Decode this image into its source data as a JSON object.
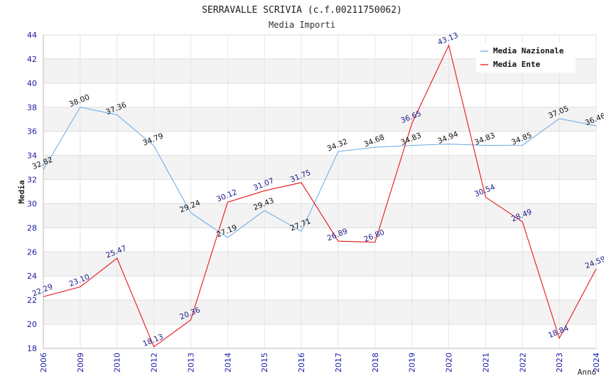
{
  "chart_data": {
    "type": "line",
    "title": "SERRAVALLE SCRIVIA (c.f.00211750062)",
    "subtitle": "Media Importi",
    "xlabel": "Anno",
    "ylabel": "Media",
    "ylim": [
      18,
      44
    ],
    "yticks": [
      "18",
      "20",
      "22",
      "24",
      "26",
      "28",
      "30",
      "32",
      "34",
      "36",
      "38",
      "40",
      "42",
      "44"
    ],
    "categories": [
      "2006",
      "2009",
      "2010",
      "2012",
      "2013",
      "2014",
      "2015",
      "2016",
      "2017",
      "2018",
      "2019",
      "2020",
      "2021",
      "2022",
      "2023",
      "2024"
    ],
    "grid": "horizontal bands",
    "legend_position": "top-right",
    "series": [
      {
        "name": "Media Nazionale",
        "color": "#6aa8e6",
        "values": [
          32.82,
          38.0,
          37.36,
          34.79,
          29.24,
          27.19,
          29.43,
          27.71,
          34.32,
          34.68,
          34.83,
          34.94,
          34.83,
          34.85,
          37.05,
          36.46
        ],
        "labels": [
          "32.82",
          "38.00",
          "37.36",
          "34.79",
          "29.24",
          "27.19",
          "29.43",
          "27.71",
          "34.32",
          "34.68",
          "34.83",
          "34.94",
          "34.83",
          "34.85",
          "37.05",
          "36.46"
        ]
      },
      {
        "name": "Media Ente",
        "color": "#e8141a",
        "values": [
          22.29,
          23.1,
          25.47,
          18.13,
          20.36,
          30.12,
          31.07,
          31.75,
          26.89,
          26.8,
          36.65,
          43.13,
          30.54,
          28.49,
          18.84,
          24.59
        ],
        "labels": [
          "22.29",
          "23.10",
          "25.47",
          "18.13",
          "20.36",
          "30.12",
          "31.07",
          "31.75",
          "26.89",
          "26.80",
          "36.65",
          "43.13",
          "30.54",
          "28.49",
          "18.84",
          "24.59"
        ]
      }
    ]
  }
}
